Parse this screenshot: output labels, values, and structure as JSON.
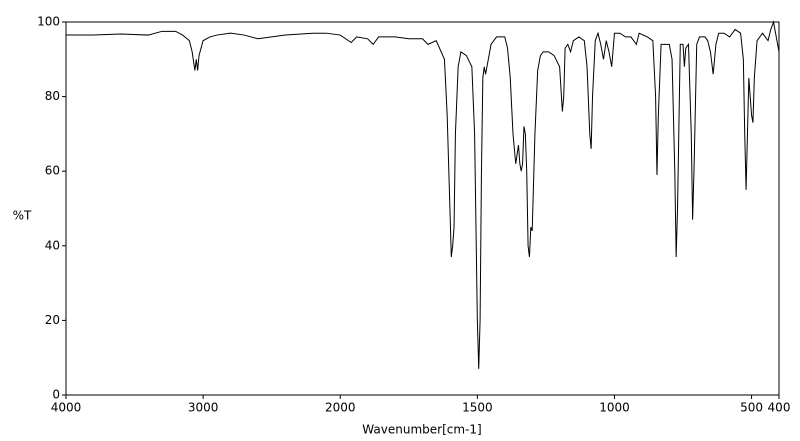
{
  "chart_data": {
    "type": "line",
    "x_label": "Wavenumber[cm-1]",
    "y_label": "%T",
    "xlim": [
      4000,
      400
    ],
    "xticks": [
      4000,
      3000,
      2000,
      1500,
      1000,
      500,
      400
    ],
    "xsplit": 2000,
    "ylim": [
      0,
      100
    ],
    "yticks": [
      0,
      20,
      40,
      60,
      80,
      100
    ],
    "grid": false,
    "x": [
      4000,
      3800,
      3600,
      3400,
      3300,
      3200,
      3150,
      3100,
      3080,
      3060,
      3050,
      3040,
      3030,
      3000,
      2950,
      2900,
      2800,
      2700,
      2600,
      2500,
      2400,
      2200,
      2100,
      2000,
      1960,
      1940,
      1900,
      1880,
      1860,
      1800,
      1750,
      1700,
      1680,
      1650,
      1620,
      1610,
      1600,
      1595,
      1590,
      1585,
      1580,
      1570,
      1560,
      1540,
      1520,
      1510,
      1500,
      1495,
      1490,
      1485,
      1480,
      1475,
      1470,
      1460,
      1450,
      1430,
      1400,
      1390,
      1380,
      1370,
      1360,
      1350,
      1345,
      1340,
      1335,
      1330,
      1325,
      1320,
      1315,
      1310,
      1305,
      1300,
      1290,
      1280,
      1270,
      1260,
      1240,
      1220,
      1200,
      1190,
      1185,
      1180,
      1170,
      1160,
      1150,
      1130,
      1110,
      1100,
      1090,
      1085,
      1080,
      1070,
      1060,
      1050,
      1040,
      1030,
      1020,
      1010,
      1000,
      980,
      960,
      940,
      920,
      910,
      880,
      860,
      850,
      845,
      840,
      830,
      800,
      790,
      780,
      775,
      770,
      760,
      750,
      745,
      740,
      730,
      720,
      715,
      710,
      700,
      690,
      670,
      660,
      650,
      640,
      630,
      620,
      600,
      580,
      560,
      540,
      530,
      525,
      520,
      515,
      510,
      505,
      500,
      495,
      490,
      480,
      470,
      460,
      450,
      440,
      430,
      420,
      410,
      400
    ],
    "series": [
      {
        "color": "#000000",
        "values": [
          96.5,
          96.5,
          96.8,
          96.5,
          97.5,
          97.5,
          96.5,
          95,
          92,
          87,
          90,
          87,
          91,
          95,
          96,
          96.5,
          97,
          96.5,
          95.5,
          96,
          96.5,
          97,
          97,
          96.5,
          94.5,
          96,
          95.5,
          94,
          96,
          96,
          95.5,
          95.5,
          94,
          95,
          90,
          75,
          50,
          37,
          40,
          45,
          70,
          88,
          92,
          91,
          88,
          70,
          20,
          7,
          20,
          60,
          85,
          88,
          86,
          90,
          94,
          96,
          96,
          93,
          85,
          70,
          62,
          67,
          62,
          60,
          62,
          72,
          70,
          60,
          40,
          37,
          45,
          44,
          70,
          87,
          91,
          92,
          92,
          91,
          88,
          76,
          80,
          93,
          94,
          92,
          95,
          96,
          95,
          88,
          70,
          66,
          80,
          95,
          97,
          94,
          90,
          95,
          92,
          88,
          97,
          97,
          96,
          96,
          94,
          97,
          96,
          95,
          80,
          59,
          75,
          94,
          94,
          90,
          60,
          37,
          50,
          94,
          94,
          88,
          93,
          94,
          70,
          47,
          60,
          94,
          96,
          96,
          95,
          92,
          86,
          94,
          97,
          97,
          96,
          98,
          97,
          90,
          70,
          55,
          70,
          85,
          80,
          75,
          73,
          85,
          95,
          96,
          97,
          96,
          95,
          98,
          100,
          96,
          92
        ]
      }
    ]
  }
}
